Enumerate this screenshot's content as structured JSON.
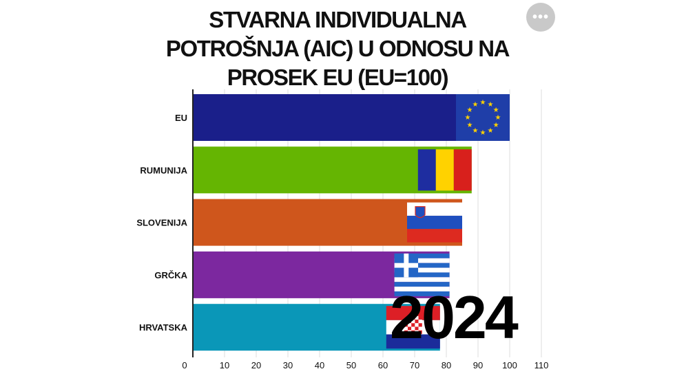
{
  "title_lines": [
    "STVARNA INDIVIDUALNA",
    "POTROŠNJA (AIC) U ODNOSU NA",
    "PROSEK EU (EU=100)"
  ],
  "more_button_label": "•••",
  "year_label": "2024",
  "colors": {
    "eu": "#1a1f8a",
    "rumunija": "#65b502",
    "slovenija": "#cf561c",
    "grcka": "#7c289f",
    "hrvatska": "#0a97b8",
    "grid": "#dddddd"
  },
  "chart_data": {
    "type": "bar",
    "orientation": "horizontal",
    "title": "STVARNA INDIVIDUALNA POTROŠNJA (AIC) U ODNOSU NA PROSEK EU (EU=100)",
    "categories": [
      "EU",
      "RUMUNIJA",
      "SLOVENIJA",
      "GRČKA",
      "HRVATSKA"
    ],
    "values": [
      100,
      88,
      85,
      81,
      78
    ],
    "flags": [
      "eu-flag",
      "romania-flag",
      "slovenia-flag",
      "greece-flag",
      "croatia-flag"
    ],
    "xlim": [
      0,
      110
    ],
    "xticks": [
      0,
      10,
      20,
      30,
      40,
      50,
      60,
      70,
      80,
      90,
      100,
      110
    ],
    "grid": true,
    "xlabel": "",
    "ylabel": "",
    "annotation": "2024"
  }
}
